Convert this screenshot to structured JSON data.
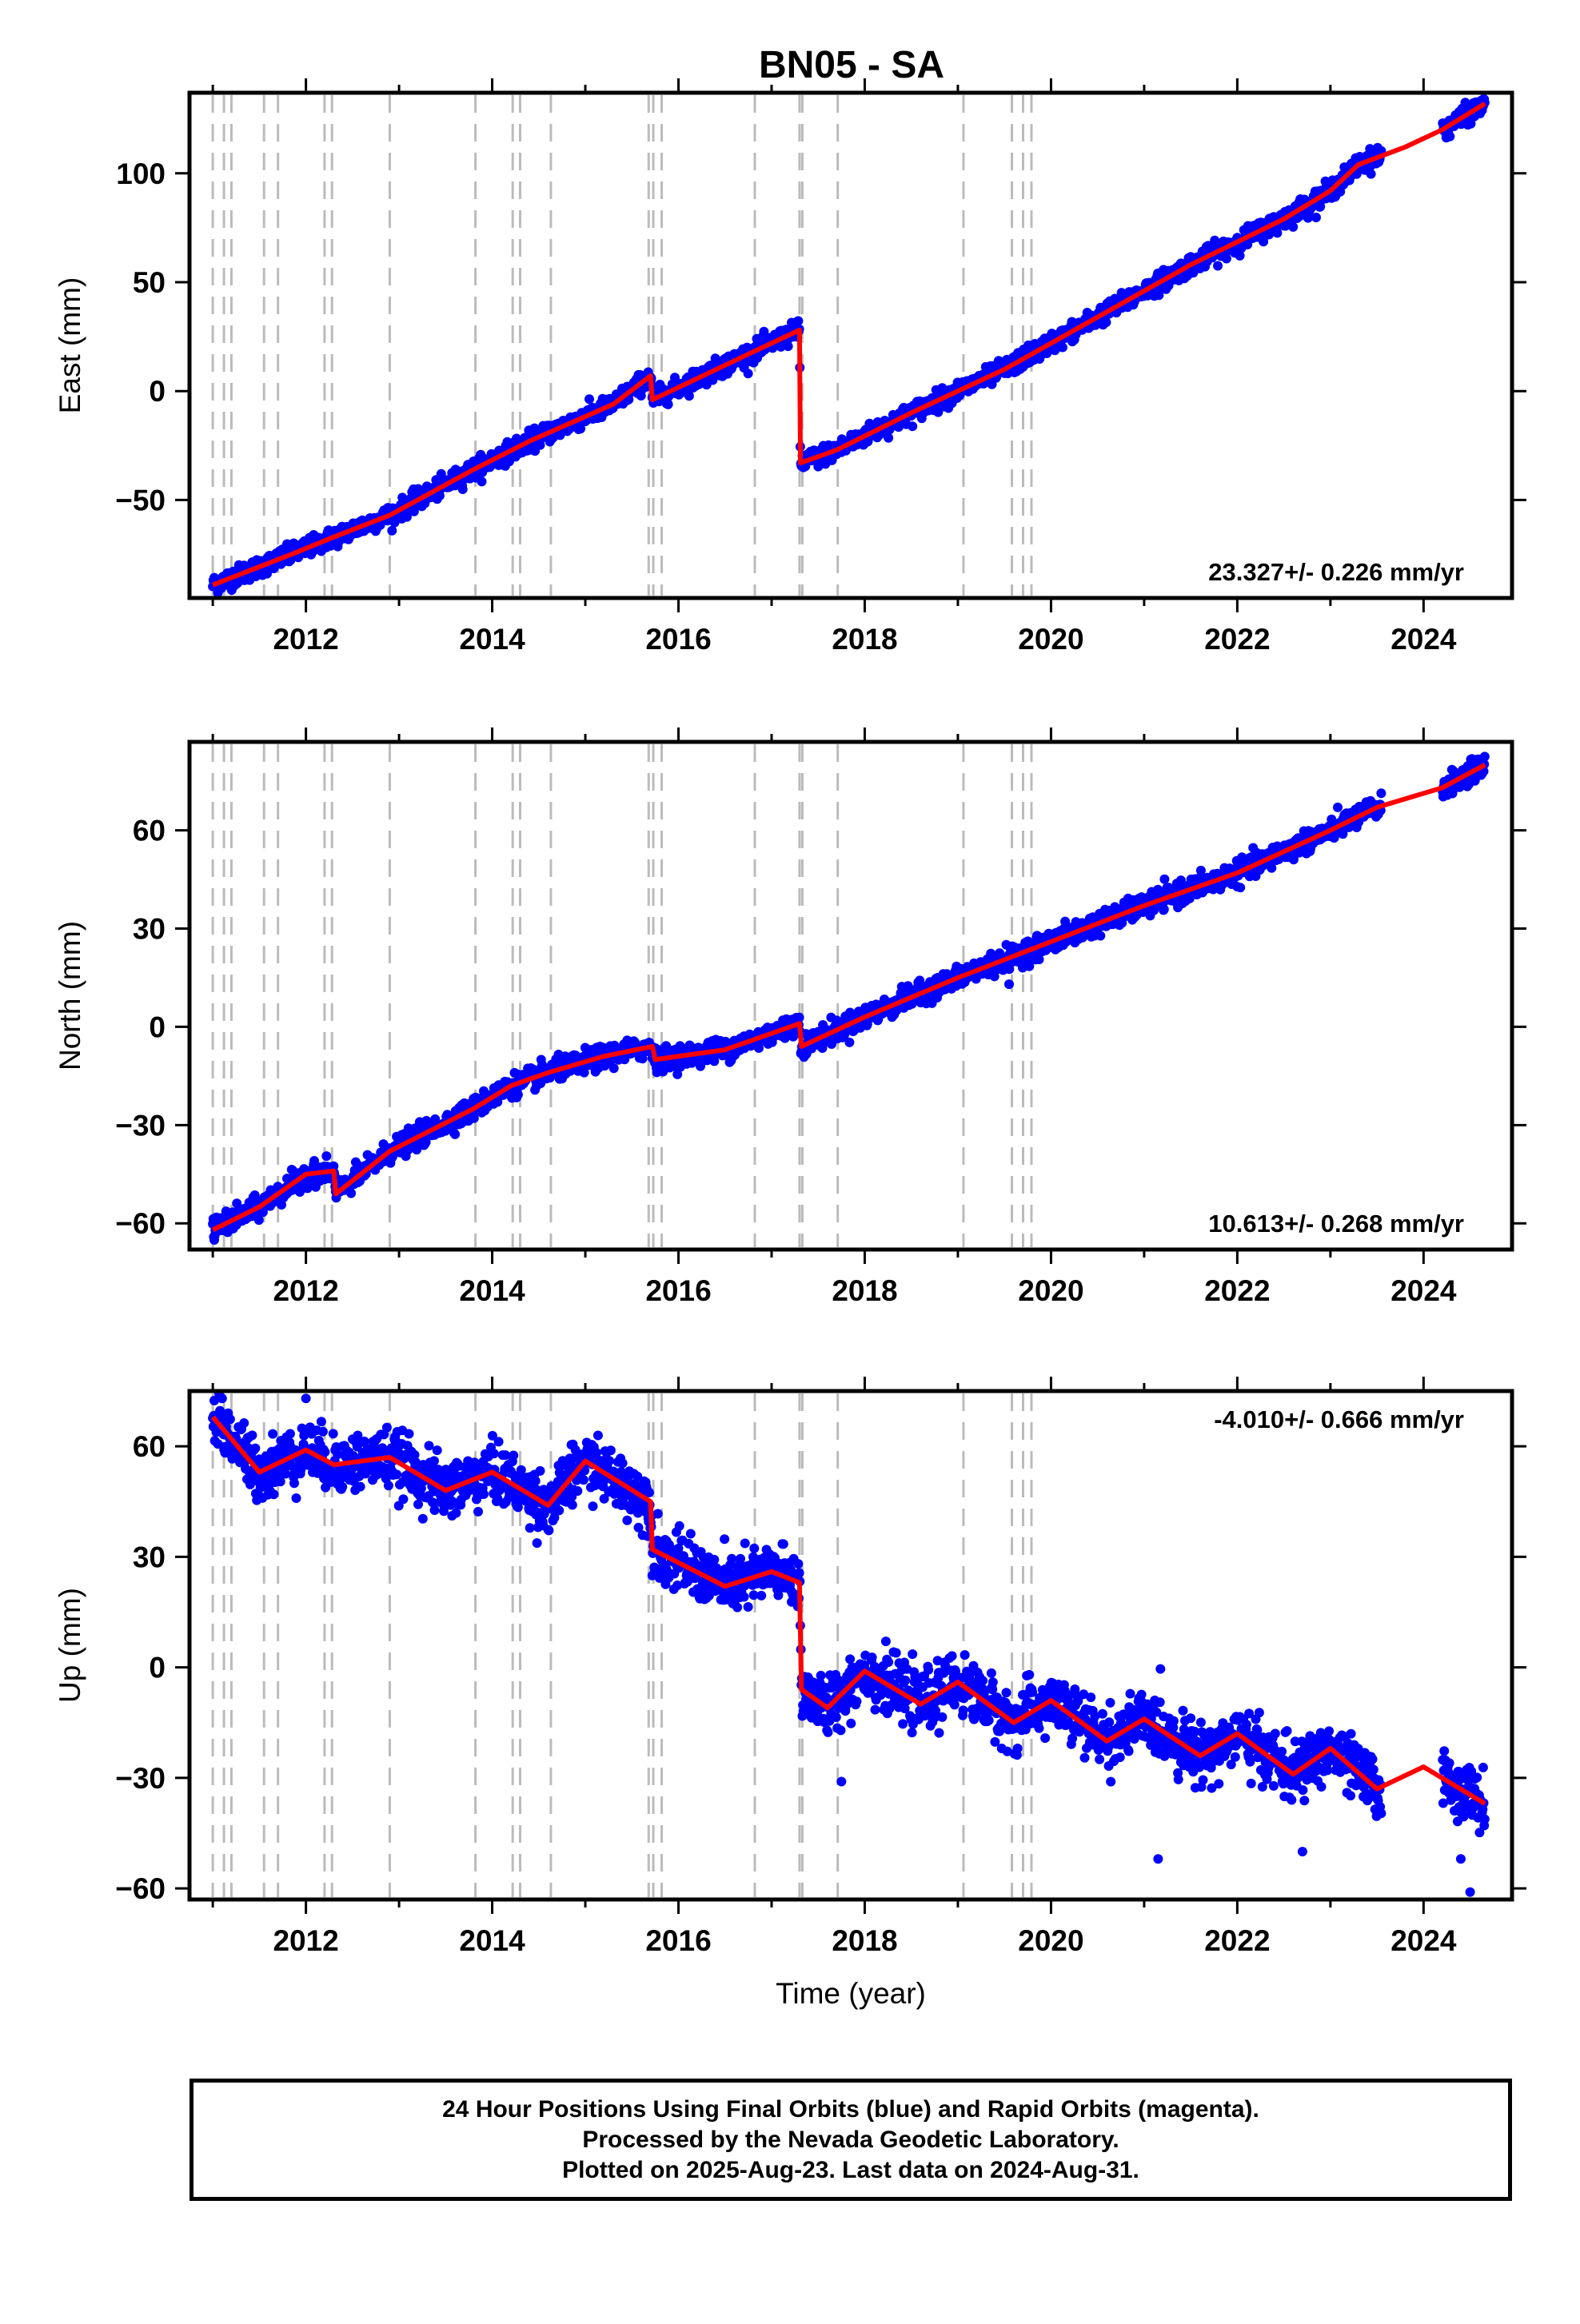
{
  "title": "BN05 - SA",
  "footer": {
    "line1": "24 Hour Positions Using Final Orbits (blue) and Rapid Orbits (magenta).",
    "line2": "Processed by the Nevada Geodetic Laboratory.",
    "line3": "Plotted on 2025-Aug-23. Last data on 2024-Aug-31."
  },
  "colors": {
    "data_points": "#0000ff",
    "model_fit": "#ff0000",
    "steps": "#bbbbbb",
    "frame": "#000000"
  },
  "chart_data": [
    {
      "type": "scatter",
      "name": "east",
      "ylabel": "East (mm)",
      "xlabel": "",
      "xlim": [
        2010.75,
        2024.95
      ],
      "ylim": [
        -95,
        137
      ],
      "x_ticks": [
        2012,
        2014,
        2016,
        2018,
        2020,
        2022,
        2024
      ],
      "y_ticks": [
        -50,
        0,
        50,
        100
      ],
      "y_tick_labels": [
        "−50",
        "0",
        "50",
        "100"
      ],
      "rate_label": "23.327+/- 0.226 mm/yr",
      "rate_position": "bottom-right",
      "grid": false,
      "data_range": [
        2011.0,
        2024.66
      ],
      "fit": [
        [
          2011.0,
          -89
        ],
        [
          2011.9,
          -74
        ],
        [
          2012.3,
          -67
        ],
        [
          2012.9,
          -57
        ],
        [
          2013.8,
          -36
        ],
        [
          2014.4,
          -23
        ],
        [
          2015.3,
          -6
        ],
        [
          2015.7,
          7
        ],
        [
          2015.72,
          -4
        ],
        [
          2016.8,
          18
        ],
        [
          2017.3,
          28
        ],
        [
          2017.31,
          -33
        ],
        [
          2017.7,
          -27
        ],
        [
          2018.5,
          -10
        ],
        [
          2019.5,
          10
        ],
        [
          2020.5,
          34
        ],
        [
          2021.5,
          58
        ],
        [
          2022.5,
          79
        ],
        [
          2023.0,
          92
        ],
        [
          2023.3,
          104
        ],
        [
          2023.8,
          112
        ],
        [
          2024.2,
          120
        ],
        [
          2024.66,
          132
        ]
      ],
      "scatter": 4,
      "outliers": [],
      "reveal_outside": []
    },
    {
      "type": "scatter",
      "name": "north",
      "ylabel": "North (mm)",
      "xlabel": "",
      "xlim": [
        2010.75,
        2024.95
      ],
      "ylim": [
        -68,
        87
      ],
      "x_ticks": [
        2012,
        2014,
        2016,
        2018,
        2020,
        2022,
        2024
      ],
      "y_ticks": [
        -60,
        -30,
        0,
        30,
        60
      ],
      "y_tick_labels": [
        "−60",
        "−30",
        "0",
        "30",
        "60"
      ],
      "rate_label": "10.613+/- 0.268 mm/yr",
      "rate_position": "bottom-right",
      "grid": false,
      "data_range": [
        2011.0,
        2024.66
      ],
      "fit": [
        [
          2011.0,
          -62
        ],
        [
          2011.5,
          -55
        ],
        [
          2012.0,
          -45
        ],
        [
          2012.3,
          -44
        ],
        [
          2012.32,
          -51
        ],
        [
          2012.9,
          -38
        ],
        [
          2013.8,
          -25
        ],
        [
          2014.2,
          -18
        ],
        [
          2014.6,
          -14
        ],
        [
          2015.2,
          -9
        ],
        [
          2015.72,
          -6
        ],
        [
          2015.75,
          -10
        ],
        [
          2016.5,
          -7
        ],
        [
          2017.3,
          1
        ],
        [
          2017.32,
          -6
        ],
        [
          2018.0,
          3
        ],
        [
          2019.0,
          15
        ],
        [
          2020.0,
          26
        ],
        [
          2021.0,
          37
        ],
        [
          2022.0,
          47
        ],
        [
          2023.0,
          60
        ],
        [
          2023.5,
          67
        ],
        [
          2024.2,
          73
        ],
        [
          2024.66,
          80
        ]
      ],
      "scatter": 3,
      "outliers": [
        [
          2019.55,
          13
        ]
      ],
      "reveal_outside": []
    },
    {
      "type": "scatter",
      "name": "up",
      "ylabel": "Up (mm)",
      "xlabel": "Time (year)",
      "xlim": [
        2010.75,
        2024.95
      ],
      "ylim": [
        -63,
        75
      ],
      "x_ticks": [
        2012,
        2014,
        2016,
        2018,
        2020,
        2022,
        2024
      ],
      "y_ticks": [
        -60,
        -30,
        0,
        30,
        60
      ],
      "y_tick_labels": [
        "−60",
        "−30",
        "0",
        "30",
        "60"
      ],
      "rate_label": "-4.010+/- 0.666 mm/yr",
      "rate_position": "top-right",
      "grid": false,
      "data_range": [
        2011.0,
        2024.66
      ],
      "fit": [
        [
          2011.0,
          68
        ],
        [
          2011.5,
          53
        ],
        [
          2012.0,
          59
        ],
        [
          2012.3,
          55
        ],
        [
          2012.9,
          57
        ],
        [
          2013.5,
          48
        ],
        [
          2014.0,
          53
        ],
        [
          2014.6,
          44
        ],
        [
          2015.0,
          56
        ],
        [
          2015.7,
          45
        ],
        [
          2015.72,
          32
        ],
        [
          2016.5,
          22
        ],
        [
          2017.0,
          26
        ],
        [
          2017.3,
          23
        ],
        [
          2017.32,
          -6
        ],
        [
          2017.6,
          -11
        ],
        [
          2018.0,
          -1
        ],
        [
          2018.6,
          -10
        ],
        [
          2019.0,
          -4
        ],
        [
          2019.6,
          -15
        ],
        [
          2020.0,
          -9
        ],
        [
          2020.6,
          -20
        ],
        [
          2021.0,
          -14
        ],
        [
          2021.6,
          -24
        ],
        [
          2022.0,
          -18
        ],
        [
          2022.6,
          -29
        ],
        [
          2023.0,
          -22
        ],
        [
          2023.5,
          -33
        ],
        [
          2024.0,
          -27
        ],
        [
          2024.66,
          -37
        ]
      ],
      "scatter": 7,
      "outliers": [
        [
          2023.2,
          -22
        ],
        [
          2021.15,
          -52
        ],
        [
          2022.7,
          -50
        ],
        [
          2024.5,
          -61
        ],
        [
          2017.75,
          -31
        ],
        [
          2024.4,
          -52
        ]
      ],
      "reveal_outside": [
        [
          2011.1,
          73
        ],
        [
          2012.0,
          73
        ]
      ]
    }
  ],
  "steps": [
    2011.0,
    2011.12,
    2011.2,
    2011.55,
    2011.7,
    2012.2,
    2012.28,
    2012.9,
    2013.82,
    2014.22,
    2014.3,
    2014.63,
    2015.68,
    2015.73,
    2015.82,
    2016.82,
    2017.3,
    2017.33,
    2017.71,
    2019.06,
    2019.58,
    2019.7,
    2019.79
  ]
}
